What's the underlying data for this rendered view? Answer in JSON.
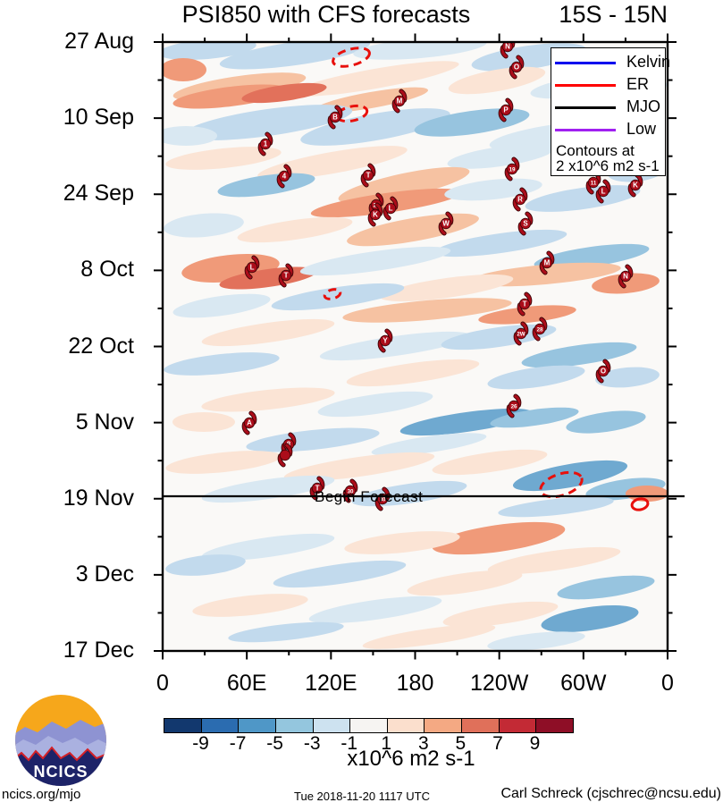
{
  "title": {
    "main": "PSI850 with CFS forecasts",
    "range": "15S - 15N"
  },
  "legend": {
    "items": [
      {
        "label": "Kelvin",
        "color": "#0000ee"
      },
      {
        "label": "ER",
        "color": "#ff0000"
      },
      {
        "label": "MJO",
        "color": "#000000"
      },
      {
        "label": "Low",
        "color": "#a020f0"
      }
    ],
    "note_line1": "Contours at",
    "note_line2": "2 x10^6 m2 s-1"
  },
  "begin_forecast": {
    "label": "Begin Forecast"
  },
  "colorbar": {
    "tick_labels": [
      "-9",
      "-7",
      "-5",
      "-3",
      "-1",
      "1",
      "3",
      "5",
      "7",
      "9"
    ],
    "colors": [
      "#12386e",
      "#2b6cb0",
      "#4f97c7",
      "#94c6de",
      "#cde2f0",
      "#f6f4f2",
      "#fbdfcd",
      "#f4a983",
      "#e0705a",
      "#c32a35",
      "#8e0e26"
    ],
    "unit_label": "x10^6 m2 s-1"
  },
  "footer": {
    "left": "ncics.org/mjo",
    "center": "Tue 2018-11-20 1117 UTC",
    "right": "Carl Schreck (cjschrec@ncsu.edu)"
  },
  "logo": {
    "text": "NCICS"
  },
  "chart_data": {
    "type": "heatmap",
    "subtype": "hovmoller-filled-contour",
    "title": "PSI850 with CFS forecasts",
    "subtitle": "15S - 15N",
    "x_axis": {
      "labels": [
        "0",
        "60E",
        "120E",
        "180",
        "120W",
        "60W",
        "0"
      ],
      "range_deg": [
        0,
        360
      ],
      "minor_step_deg": 30
    },
    "y_axis": {
      "labels": [
        "27 Aug",
        "10 Sep",
        "24 Sep",
        "8 Oct",
        "22 Oct",
        "5 Nov",
        "19 Nov",
        "3 Dec",
        "17 Dec"
      ],
      "major_step_days": 14,
      "minor_step_days": 7
    },
    "shading_levels": [
      -9,
      -7,
      -5,
      -3,
      -1,
      1,
      3,
      5,
      7,
      9
    ],
    "shading_unit": "x10^6 m2 s-1",
    "contour_interval_note": "2 x10^6 m2 s-1",
    "begin_forecast_near": "19 Nov",
    "storm_symbols": [
      [
        568,
        52,
        "N"
      ],
      [
        578,
        75,
        "O"
      ],
      [
        447,
        113,
        "M"
      ],
      [
        375,
        131,
        "B"
      ],
      [
        566,
        123,
        "P"
      ],
      [
        297,
        161,
        "1"
      ],
      [
        318,
        197,
        "4"
      ],
      [
        412,
        196,
        "T"
      ],
      [
        573,
        189,
        "19"
      ],
      [
        664,
        204,
        "11"
      ],
      [
        675,
        214,
        "L"
      ],
      [
        711,
        207,
        "K"
      ],
      [
        421,
        229,
        "29"
      ],
      [
        437,
        233,
        "L"
      ],
      [
        420,
        240,
        "K"
      ],
      [
        499,
        250,
        "W"
      ],
      [
        582,
        223,
        "R"
      ],
      [
        588,
        250,
        "S"
      ],
      [
        282,
        299,
        "L"
      ],
      [
        320,
        308,
        "T"
      ],
      [
        612,
        294,
        "M"
      ],
      [
        700,
        309,
        "N"
      ],
      [
        587,
        340,
        "T"
      ],
      [
        431,
        381,
        "Y"
      ],
      [
        604,
        368,
        "28"
      ],
      [
        583,
        373,
        "2W"
      ],
      [
        675,
        415,
        "O"
      ],
      [
        575,
        454,
        "26"
      ],
      [
        279,
        473,
        "A"
      ],
      [
        323,
        497,
        "8"
      ],
      [
        319,
        509,
        ""
      ],
      [
        355,
        546,
        "T"
      ],
      [
        392,
        549,
        "30"
      ],
      [
        428,
        558,
        "30"
      ]
    ],
    "contour_ellipses": [
      [
        393,
        64,
        21,
        9,
        -15,
        true
      ],
      [
        394,
        127,
        17,
        8,
        -12,
        true
      ],
      [
        372,
        329,
        9,
        5,
        -15,
        true
      ],
      [
        628,
        542,
        24,
        12,
        -18,
        true
      ],
      [
        716,
        564,
        9,
        6,
        -12,
        false
      ]
    ],
    "field_blobs": [
      [
        232,
        55,
        55,
        11,
        -5,
        "#c2daed"
      ],
      [
        330,
        60,
        85,
        13,
        -8,
        "#c2daed"
      ],
      [
        470,
        54,
        75,
        11,
        -5,
        "#d9e8f2"
      ],
      [
        592,
        64,
        65,
        13,
        -8,
        "#c2daed"
      ],
      [
        205,
        78,
        26,
        13,
        0,
        "#f09a79"
      ],
      [
        268,
        97,
        75,
        12,
        -8,
        "#f6c2a2"
      ],
      [
        420,
        88,
        95,
        11,
        -10,
        "#fbe4d5"
      ],
      [
        556,
        90,
        55,
        12,
        -10,
        "#fbe4d5"
      ],
      [
        648,
        97,
        55,
        11,
        -8,
        "#d9e8f2"
      ],
      [
        718,
        95,
        28,
        11,
        0,
        "#d9e8f2"
      ],
      [
        258,
        108,
        65,
        11,
        -7,
        "#f09a79"
      ],
      [
        318,
        104,
        48,
        9,
        -8,
        "#e2715b"
      ],
      [
        415,
        112,
        65,
        9,
        -10,
        "#f6c2a2"
      ],
      [
        300,
        137,
        95,
        15,
        -8,
        "#c2daed"
      ],
      [
        420,
        142,
        85,
        15,
        -10,
        "#c2daed"
      ],
      [
        528,
        137,
        65,
        13,
        -8,
        "#97c4df"
      ],
      [
        622,
        152,
        75,
        13,
        -8,
        "#d9e8f2"
      ],
      [
        208,
        152,
        35,
        11,
        0,
        "#d9e8f2"
      ],
      [
        250,
        177,
        65,
        11,
        -6,
        "#fbe4d5"
      ],
      [
        372,
        182,
        85,
        12,
        -10,
        "#fbe4d5"
      ],
      [
        560,
        175,
        60,
        11,
        -8,
        "#d9e8f2"
      ],
      [
        298,
        207,
        55,
        11,
        -8,
        "#97c4df"
      ],
      [
        452,
        207,
        75,
        13,
        -12,
        "#f6c2a2"
      ],
      [
        432,
        227,
        85,
        11,
        -8,
        "#f09a79"
      ],
      [
        552,
        212,
        55,
        11,
        -6,
        "#d9e8f2"
      ],
      [
        652,
        222,
        65,
        12,
        -8,
        "#c2daed"
      ],
      [
        712,
        192,
        32,
        11,
        -6,
        "#c2daed"
      ],
      [
        228,
        252,
        45,
        13,
        -5,
        "#d9e8f2"
      ],
      [
        330,
        257,
        65,
        11,
        -8,
        "#fbe4d5"
      ],
      [
        462,
        257,
        75,
        13,
        -10,
        "#f6c2a2"
      ],
      [
        560,
        272,
        75,
        11,
        -8,
        "#c2daed"
      ],
      [
        662,
        287,
        65,
        11,
        -8,
        "#97c4df"
      ],
      [
        258,
        300,
        55,
        15,
        -6,
        "#f09a79"
      ],
      [
        300,
        311,
        55,
        10,
        -8,
        "#e2715b"
      ],
      [
        420,
        292,
        85,
        11,
        -8,
        "#d9e8f2"
      ],
      [
        610,
        307,
        85,
        11,
        -5,
        "#f6c2a2"
      ],
      [
        700,
        317,
        38,
        11,
        -5,
        "#f09a79"
      ],
      [
        500,
        322,
        75,
        11,
        -8,
        "#fbe4d5"
      ],
      [
        378,
        332,
        75,
        11,
        -8,
        "#c2daed"
      ],
      [
        248,
        342,
        55,
        11,
        -8,
        "#d9e8f2"
      ],
      [
        478,
        347,
        95,
        11,
        -5,
        "#f6c2a2"
      ],
      [
        590,
        352,
        55,
        9,
        -6,
        "#f09a79"
      ],
      [
        300,
        372,
        75,
        11,
        -8,
        "#fbe4d5"
      ],
      [
        442,
        387,
        85,
        11,
        -8,
        "#d9e8f2"
      ],
      [
        558,
        377,
        65,
        11,
        -8,
        "#c2daed"
      ],
      [
        648,
        397,
        65,
        11,
        -8,
        "#97c4df"
      ],
      [
        248,
        407,
        65,
        11,
        -6,
        "#c2daed"
      ],
      [
        462,
        417,
        75,
        11,
        -8,
        "#fbe4d5"
      ],
      [
        600,
        422,
        55,
        11,
        -8,
        "#c2daed"
      ],
      [
        702,
        422,
        36,
        11,
        -5,
        "#c2daed"
      ],
      [
        300,
        447,
        75,
        11,
        -6,
        "#fbe4d5"
      ],
      [
        420,
        452,
        65,
        11,
        -8,
        "#d9e8f2"
      ],
      [
        522,
        472,
        75,
        11,
        -8,
        "#6fa9d0"
      ],
      [
        598,
        467,
        50,
        9,
        -8,
        "#97c4df"
      ],
      [
        678,
        472,
        45,
        11,
        -8,
        "#97c4df"
      ],
      [
        228,
        472,
        35,
        11,
        0,
        "#fbe4d5"
      ],
      [
        350,
        492,
        75,
        11,
        -6,
        "#c2daed"
      ],
      [
        480,
        497,
        65,
        9,
        -8,
        "#d9e8f2"
      ],
      [
        250,
        517,
        65,
        11,
        -6,
        "#fbe4d5"
      ],
      [
        402,
        522,
        85,
        11,
        -8,
        "#fbe4d5"
      ],
      [
        548,
        517,
        65,
        11,
        -8,
        "#fbe4d5"
      ],
      [
        638,
        532,
        65,
        13,
        -10,
        "#6fa9d0"
      ],
      [
        700,
        547,
        45,
        11,
        -8,
        "#97c4df"
      ],
      [
        300,
        547,
        75,
        11,
        -8,
        "#d9e8f2"
      ],
      [
        458,
        552,
        65,
        11,
        -8,
        "#c2daed"
      ],
      [
        622,
        567,
        65,
        9,
        -6,
        "#c2daed"
      ],
      [
        724,
        552,
        24,
        9,
        0,
        "#f09a79"
      ],
      [
        558,
        602,
        75,
        15,
        -8,
        "#f09a79"
      ],
      [
        450,
        607,
        65,
        11,
        -6,
        "#fbe4d5"
      ],
      [
        300,
        612,
        75,
        11,
        -8,
        "#d9e8f2"
      ],
      [
        620,
        627,
        75,
        11,
        -8,
        "#fbe4d5"
      ],
      [
        230,
        632,
        45,
        11,
        -6,
        "#c2daed"
      ],
      [
        380,
        642,
        75,
        11,
        -8,
        "#c2daed"
      ],
      [
        520,
        652,
        65,
        11,
        -8,
        "#fbe4d5"
      ],
      [
        678,
        657,
        55,
        11,
        -8,
        "#97c4df"
      ],
      [
        280,
        677,
        65,
        11,
        -6,
        "#fbe4d5"
      ],
      [
        420,
        682,
        75,
        11,
        -8,
        "#d9e8f2"
      ],
      [
        560,
        687,
        65,
        11,
        -8,
        "#fbe4d5"
      ],
      [
        660,
        692,
        55,
        13,
        -8,
        "#6fa9d0"
      ],
      [
        320,
        707,
        65,
        9,
        -6,
        "#c2daed"
      ],
      [
        480,
        712,
        75,
        9,
        -8,
        "#fbe4d5"
      ],
      [
        600,
        717,
        55,
        9,
        -6,
        "#d9e8f2"
      ]
    ]
  }
}
